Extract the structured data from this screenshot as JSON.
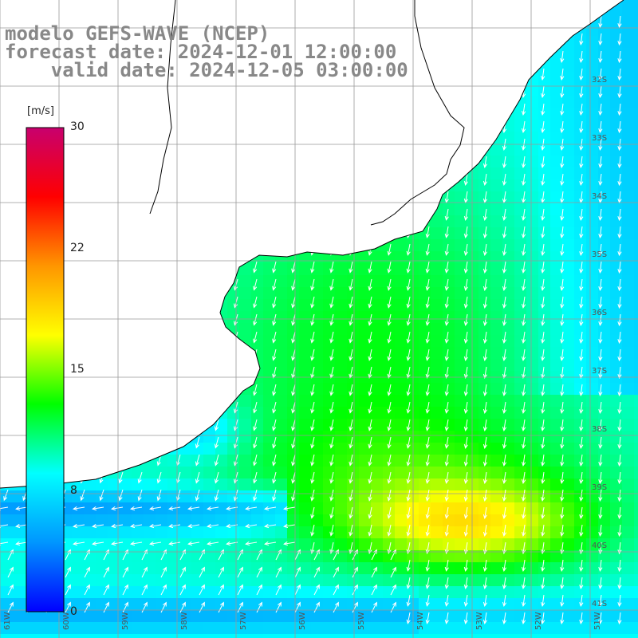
{
  "title": {
    "line1": "modelo GEFS-WAVE (NCEP)",
    "line2": "forecast date: 2024-12-01 12:00:00",
    "line3": "    valid date: 2024-12-05 03:00:00"
  },
  "colorbar": {
    "unit": "[m/s]",
    "min": 0,
    "max": 30,
    "ticks": [
      "30",
      "22",
      "15",
      "8",
      "0"
    ],
    "colors": [
      "#0000ff",
      "#0096ff",
      "#00ffff",
      "#00ff00",
      "#ffff00",
      "#ff9600",
      "#ff0000",
      "#c8006e"
    ]
  },
  "map": {
    "lat_labels": [
      "32S",
      "33S",
      "34S",
      "35S",
      "36S",
      "37S",
      "38S",
      "39S",
      "40S",
      "41S"
    ],
    "lon_labels": [
      "61W",
      "60W",
      "59W",
      "58W",
      "57W",
      "56W",
      "55W",
      "54W",
      "53W",
      "52W",
      "51W"
    ],
    "land_color": "#ffffff",
    "grid_color": "#999999",
    "coast_color": "#000000",
    "arrow_color": "#ffffff"
  }
}
